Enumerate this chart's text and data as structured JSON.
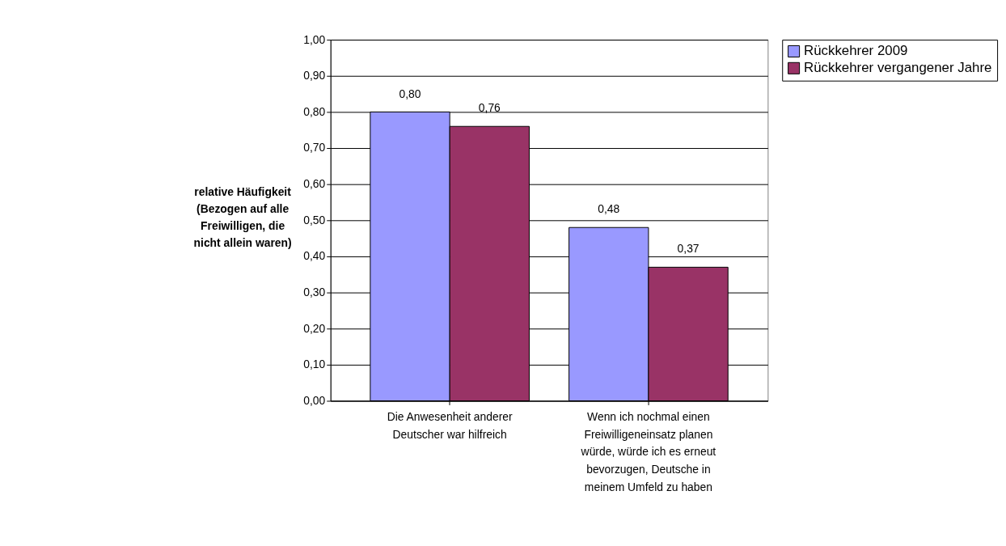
{
  "chart_data": {
    "type": "bar",
    "ylabel": "relative Häufigkeit (Bezogen auf alle Freiwilligen, die nicht allein waren)",
    "categories": [
      "Die Anwesenheit anderer Deutscher war hilfreich",
      "Wenn ich nochmal einen Freiwilligeneinsatz planen würde, würde ich es erneut bevorzugen, Deutsche in meinem Umfeld zu haben"
    ],
    "series": [
      {
        "name": "Rückkehrer 2009",
        "color": "#9999ff",
        "values": [
          0.8,
          0.48
        ],
        "value_labels": [
          "0,80",
          "0,48"
        ]
      },
      {
        "name": "Rückkehrer vergangener Jahre",
        "color": "#993366",
        "values": [
          0.76,
          0.37
        ],
        "value_labels": [
          "0,76",
          "0,37"
        ]
      }
    ],
    "ylim": [
      0,
      1
    ],
    "yticks": [
      {
        "value": 0,
        "label": "0,00"
      },
      {
        "value": 0.1,
        "label": "0,10"
      },
      {
        "value": 0.2,
        "label": "0,20"
      },
      {
        "value": 0.3,
        "label": "0,30"
      },
      {
        "value": 0.4,
        "label": "0,40"
      },
      {
        "value": 0.5,
        "label": "0,50"
      },
      {
        "value": 0.6,
        "label": "0,60"
      },
      {
        "value": 0.7,
        "label": "0,70"
      },
      {
        "value": 0.8,
        "label": "0,80"
      },
      {
        "value": 0.9,
        "label": "0,90"
      },
      {
        "value": 1.0,
        "label": "1,00"
      }
    ],
    "grid": "y",
    "legend": "right"
  }
}
